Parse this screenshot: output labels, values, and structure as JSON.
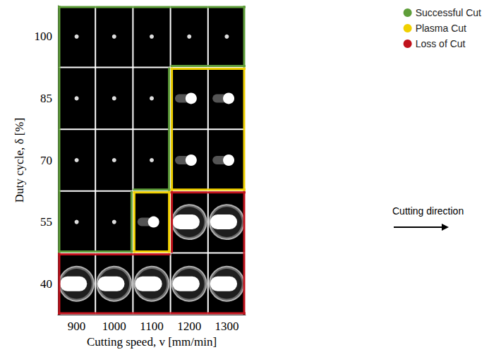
{
  "chart_data": {
    "type": "heatmap",
    "x_label": "Cutting speed, v [mm/min]",
    "y_label": "Duty cycle, δ [%]",
    "x": [
      900,
      1000,
      1100,
      1200,
      1300
    ],
    "y": [
      100,
      85,
      70,
      55,
      40
    ],
    "xlim": [
      850,
      1350
    ],
    "ylim": [
      32.5,
      107.5
    ],
    "xticks": [
      900,
      1000,
      1100,
      1200,
      1300
    ],
    "yticks": [
      40,
      55,
      70,
      85,
      100
    ],
    "series": [
      {
        "name": "Successful Cut",
        "color": "#5f9e3a",
        "cells": [
          [
            900,
            100
          ],
          [
            1000,
            100
          ],
          [
            1100,
            100
          ],
          [
            1200,
            100
          ],
          [
            1300,
            100
          ],
          [
            900,
            85
          ],
          [
            1000,
            85
          ],
          [
            1100,
            85
          ],
          [
            900,
            70
          ],
          [
            1000,
            70
          ],
          [
            1100,
            70
          ],
          [
            900,
            55
          ],
          [
            1000,
            55
          ]
        ]
      },
      {
        "name": "Plasma Cut",
        "color": "#f0d000",
        "cells": [
          [
            1200,
            85
          ],
          [
            1300,
            85
          ],
          [
            1200,
            70
          ],
          [
            1300,
            70
          ],
          [
            1100,
            55
          ]
        ]
      },
      {
        "name": "Loss of Cut",
        "color": "#c0121c",
        "cells": [
          [
            1200,
            55
          ],
          [
            1300,
            55
          ],
          [
            900,
            40
          ],
          [
            1000,
            40
          ],
          [
            1100,
            40
          ],
          [
            1200,
            40
          ],
          [
            1300,
            40
          ]
        ]
      }
    ],
    "legend": "upper right",
    "annotations": [
      "Cutting direction"
    ]
  }
}
